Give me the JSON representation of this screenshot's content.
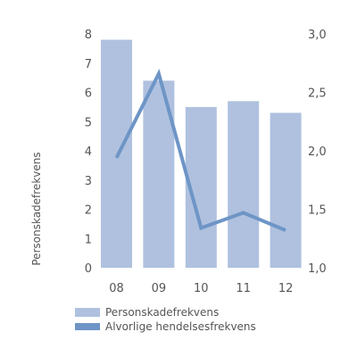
{
  "chart_data": {
    "type": "bar",
    "categories": [
      "08",
      "09",
      "10",
      "11",
      "12"
    ],
    "series": [
      {
        "name": "Personskadefrekvens",
        "kind": "bar",
        "axis": "left",
        "values": [
          7.8,
          6.4,
          5.5,
          5.7,
          5.3
        ],
        "color": "#afc1df"
      },
      {
        "name": "Alvorlige hendelsesfrekvens",
        "kind": "line",
        "axis": "right",
        "values": [
          1.94,
          2.66,
          1.34,
          1.47,
          1.32
        ],
        "color": "#6e95c6"
      }
    ],
    "ylabel": "Personskadefrekvens",
    "ylim": [
      0,
      8
    ],
    "yticks": [
      "0",
      "1",
      "2",
      "3",
      "4",
      "5",
      "6",
      "7",
      "8"
    ],
    "y2lim": [
      1.0,
      3.0
    ],
    "y2ticks": [
      "1,0",
      "1,5",
      "2,0",
      "2,5",
      "3,0"
    ],
    "grid": false,
    "legend_position": "bottom-left"
  }
}
